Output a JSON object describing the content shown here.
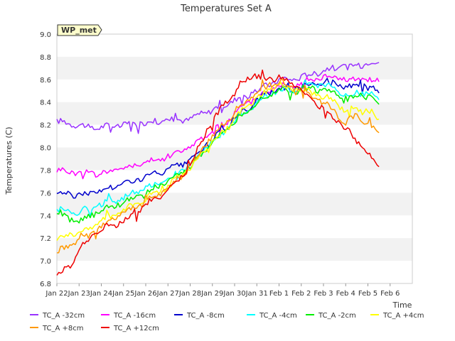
{
  "chart_data": {
    "type": "line",
    "title": "Temperatures Set A",
    "xlabel": "Time",
    "ylabel": "Temperatures (C)",
    "ylim": [
      6.8,
      9.0
    ],
    "xlim": [
      0,
      16
    ],
    "yticks": [
      6.8,
      7.0,
      7.2,
      7.4,
      7.6,
      7.8,
      8.0,
      8.2,
      8.4,
      8.6,
      8.8,
      9.0
    ],
    "ytick_labels": [
      "6.8",
      "7.0",
      "7.2",
      "7.4",
      "7.6",
      "7.8",
      "8.0",
      "8.2",
      "8.4",
      "8.6",
      "8.8",
      "9.0"
    ],
    "xtick_labels": [
      "Jan 22",
      "Jan 23",
      "Jan 24",
      "Jan 25",
      "Jan 26",
      "Jan 27",
      "Jan 28",
      "Jan 29",
      "Jan 30",
      "Jan 31",
      "Feb 1",
      "Feb 2",
      "Feb 3",
      "Feb 4",
      "Feb 5",
      "Feb 6"
    ],
    "annotation": "WP_met",
    "grid": "horizontal bands",
    "legend_position": "bottom",
    "series": [
      {
        "name": "TC_A -32cm",
        "color": "#9933ff",
        "x": [
          0,
          1,
          1.5,
          2,
          3,
          4,
          5,
          6,
          6.5,
          7,
          7.5,
          8,
          8.5,
          9,
          9.5,
          10,
          10.5,
          11,
          11.5,
          12,
          12.5,
          13,
          13.5,
          14,
          14.5
        ],
        "y": [
          8.23,
          8.2,
          8.17,
          8.18,
          8.2,
          8.22,
          8.24,
          8.25,
          8.3,
          8.33,
          8.37,
          8.42,
          8.45,
          8.5,
          8.55,
          8.6,
          8.6,
          8.62,
          8.65,
          8.68,
          8.7,
          8.72,
          8.72,
          8.75,
          8.75
        ]
      },
      {
        "name": "TC_A -16cm",
        "color": "#ff00ff",
        "x": [
          0,
          1,
          2,
          3,
          4,
          5,
          5.5,
          6,
          6.5,
          7,
          7.5,
          8,
          8.5,
          9,
          9.5,
          10,
          10.5,
          11,
          11.5,
          12,
          12.5,
          13,
          13.5,
          14,
          14.5
        ],
        "y": [
          7.8,
          7.78,
          7.77,
          7.82,
          7.86,
          7.92,
          7.96,
          8.0,
          8.08,
          8.15,
          8.2,
          8.3,
          8.38,
          8.45,
          8.5,
          8.55,
          8.55,
          8.58,
          8.6,
          8.62,
          8.63,
          8.6,
          8.6,
          8.6,
          8.58
        ]
      },
      {
        "name": "TC_A -8cm",
        "color": "#0000cc",
        "x": [
          0,
          1,
          2,
          3,
          4,
          5,
          5.5,
          6,
          6.5,
          7,
          7.5,
          8,
          8.5,
          9,
          9.5,
          10,
          10.5,
          11,
          11.5,
          12,
          12.5,
          13,
          13.5,
          14,
          14.5
        ],
        "y": [
          7.6,
          7.58,
          7.62,
          7.68,
          7.74,
          7.8,
          7.84,
          7.88,
          7.98,
          8.08,
          8.14,
          8.25,
          8.33,
          8.42,
          8.47,
          8.53,
          8.5,
          8.54,
          8.57,
          8.58,
          8.57,
          8.52,
          8.55,
          8.55,
          8.48
        ]
      },
      {
        "name": "TC_A -4cm",
        "color": "#00ffff",
        "x": [
          0,
          1,
          2,
          3,
          4,
          5,
          5.5,
          6,
          6.5,
          7,
          7.5,
          8,
          8.5,
          9,
          9.5,
          10,
          10.5,
          11,
          11.5,
          12,
          12.5,
          13,
          13.5,
          14,
          14.5
        ],
        "y": [
          7.45,
          7.43,
          7.5,
          7.56,
          7.64,
          7.72,
          7.78,
          7.84,
          7.95,
          8.06,
          8.12,
          8.23,
          8.32,
          8.4,
          8.46,
          8.52,
          8.5,
          8.52,
          8.55,
          8.55,
          8.52,
          8.45,
          8.48,
          8.48,
          8.42
        ]
      },
      {
        "name": "TC_A -2cm",
        "color": "#00ee00",
        "x": [
          0,
          1,
          2,
          3,
          4,
          5,
          5.5,
          6,
          6.5,
          7,
          7.5,
          8,
          8.5,
          9,
          9.5,
          10,
          10.5,
          11,
          11.5,
          12,
          12.5,
          13,
          13.5,
          14,
          14.5
        ],
        "y": [
          7.4,
          7.35,
          7.45,
          7.52,
          7.6,
          7.7,
          7.76,
          7.82,
          7.94,
          8.05,
          8.12,
          8.22,
          8.32,
          8.4,
          8.46,
          8.52,
          8.5,
          8.5,
          8.52,
          8.5,
          8.48,
          8.4,
          8.45,
          8.45,
          8.38
        ]
      },
      {
        "name": "TC_A +4cm",
        "color": "#ffff00",
        "x": [
          0,
          1,
          2,
          3,
          4,
          5,
          5.5,
          6,
          6.5,
          7,
          7.5,
          8,
          8.5,
          9,
          9.5,
          10,
          10.5,
          11,
          11.5,
          12,
          12.5,
          13,
          13.5,
          14,
          14.5
        ],
        "y": [
          7.2,
          7.25,
          7.35,
          7.45,
          7.55,
          7.66,
          7.74,
          7.82,
          7.95,
          8.07,
          8.14,
          8.25,
          8.35,
          8.43,
          8.5,
          8.55,
          8.52,
          8.5,
          8.48,
          8.45,
          8.4,
          8.32,
          8.35,
          8.3,
          8.25
        ]
      },
      {
        "name": "TC_A +8cm",
        "color": "#ff9900",
        "x": [
          0,
          1,
          2,
          3,
          4,
          5,
          5.5,
          6,
          6.5,
          7,
          7.5,
          8,
          8.5,
          9,
          9.5,
          10,
          10.5,
          11,
          11.5,
          12,
          12.5,
          13,
          13.5,
          14,
          14.5
        ],
        "y": [
          7.08,
          7.18,
          7.3,
          7.42,
          7.52,
          7.64,
          7.73,
          7.83,
          7.98,
          8.1,
          8.2,
          8.32,
          8.4,
          8.48,
          8.53,
          8.58,
          8.54,
          8.5,
          8.45,
          8.4,
          8.32,
          8.22,
          8.28,
          8.2,
          8.13
        ]
      },
      {
        "name": "TC_A +12cm",
        "color": "#ee0000",
        "x": [
          0,
          0.6,
          1,
          2,
          3,
          3.5,
          4,
          5,
          5.5,
          6,
          6.5,
          7,
          7.5,
          8,
          8.5,
          9,
          9.5,
          10,
          10.5,
          11,
          11.5,
          12,
          12.5,
          13,
          13.5,
          14,
          14.5
        ],
        "y": [
          6.87,
          6.95,
          7.12,
          7.28,
          7.35,
          7.42,
          7.5,
          7.62,
          7.72,
          7.85,
          8.05,
          8.22,
          8.38,
          8.5,
          8.6,
          8.62,
          8.6,
          8.62,
          8.57,
          8.5,
          8.42,
          8.35,
          8.25,
          8.18,
          8.05,
          7.95,
          7.83
        ]
      }
    ]
  }
}
